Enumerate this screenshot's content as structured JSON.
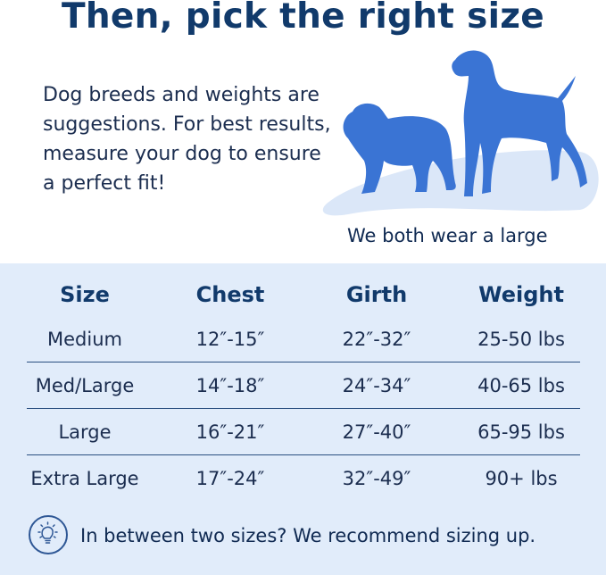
{
  "title": "Then, pick the right size",
  "intro": "Dog breeds and weights are suggestions. For best results, measure your dog to ensure a perfect fit!",
  "caption": "We both wear a large",
  "colors": {
    "title": "#113a6b",
    "dog": "#3a74d4",
    "panel": "#e1ecfa",
    "ground": "#dbe7f8"
  },
  "icons": {
    "dogs": "dog-silhouettes",
    "tip": "lightbulb-icon"
  },
  "table": {
    "headers": [
      "Size",
      "Chest",
      "Girth",
      "Weight"
    ],
    "rows": [
      [
        "Medium",
        "12″-15″",
        "22″-32″",
        "25-50 lbs"
      ],
      [
        "Med/Large",
        "14″-18″",
        "24″-34″",
        "40-65 lbs"
      ],
      [
        "Large",
        "16″-21″",
        "27″-40″",
        "65-95 lbs"
      ],
      [
        "Extra Large",
        "17″-24″",
        "32″-49″",
        "90+ lbs"
      ]
    ]
  },
  "tip": "In between two sizes? We recommend sizing up."
}
